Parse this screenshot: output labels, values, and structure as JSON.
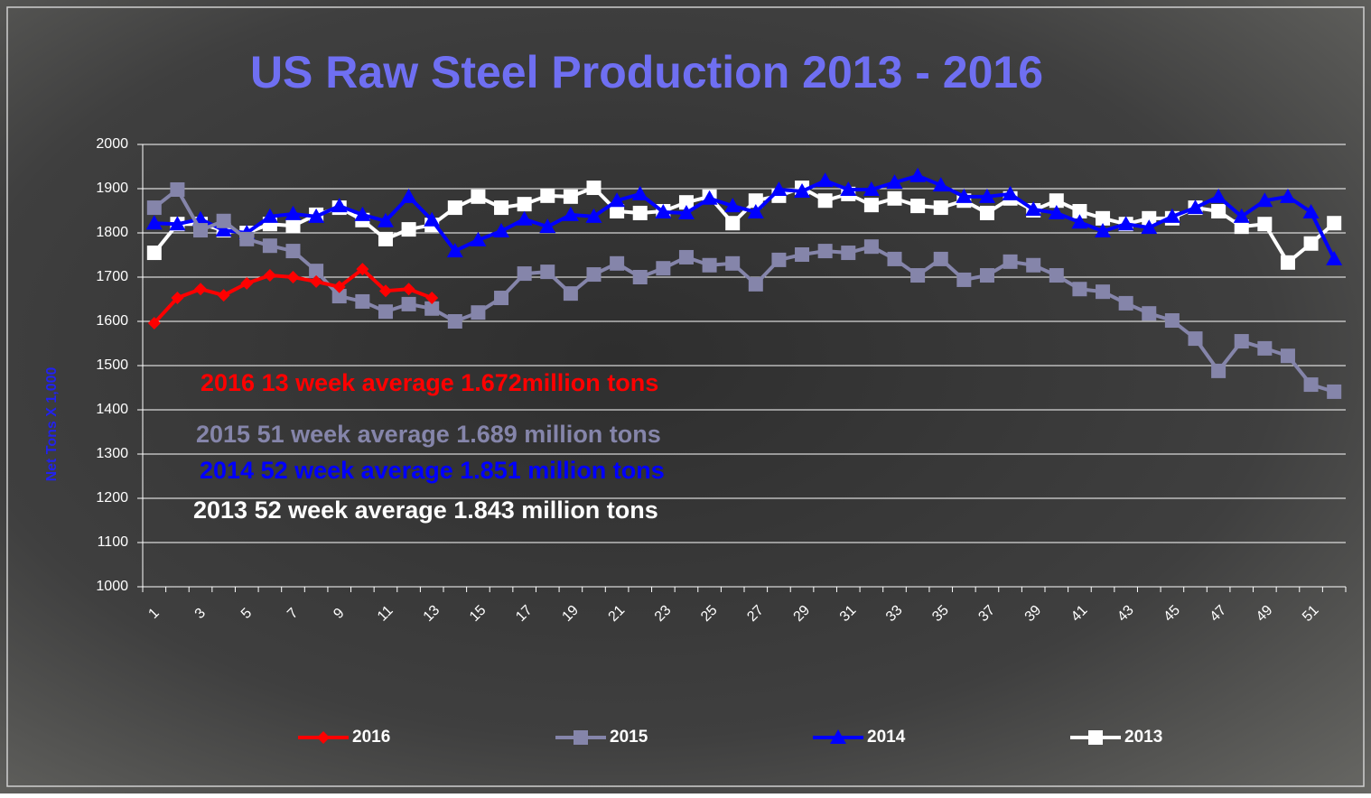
{
  "chart_data": {
    "type": "line",
    "title": "US Raw Steel Production 2013 - 2016",
    "y_label": "Net Tons X 1,000",
    "categories": [
      "1",
      null,
      "3",
      null,
      "5",
      null,
      "7",
      null,
      "9",
      null,
      "11",
      null,
      "13",
      null,
      "15",
      null,
      "17",
      null,
      "19",
      null,
      "21",
      null,
      "23",
      null,
      "25",
      null,
      "27",
      null,
      "29",
      null,
      "31",
      null,
      "33",
      null,
      "35",
      null,
      "37",
      null,
      "39",
      null,
      "41",
      null,
      "43",
      null,
      "45",
      null,
      "47",
      null,
      "49",
      null,
      "51",
      null
    ],
    "ylim": [
      1000,
      2000
    ],
    "yticks": [
      1000,
      1100,
      1200,
      1300,
      1400,
      1500,
      1600,
      1700,
      1800,
      1900,
      2000
    ],
    "grid": true,
    "legend": "bottom",
    "series": [
      {
        "name": "2016",
        "color": "#ff0000",
        "marker": "diamond",
        "values": [
          1596,
          1653,
          1673,
          1659,
          1686,
          1704,
          1700,
          1690,
          1678,
          1718,
          1669,
          1673,
          1653,
          null,
          null,
          null,
          null,
          null,
          null,
          null,
          null,
          null,
          null,
          null,
          null,
          null,
          null,
          null,
          null,
          null,
          null,
          null,
          null,
          null,
          null,
          null,
          null,
          null,
          null,
          null,
          null,
          null,
          null,
          null,
          null,
          null,
          null,
          null,
          null,
          null,
          null,
          null
        ]
      },
      {
        "name": "2015",
        "color": "#8585aa",
        "marker": "square",
        "values": [
          1857,
          1898,
          1806,
          1827,
          1786,
          1771,
          1759,
          1714,
          1657,
          1645,
          1622,
          1639,
          1629,
          1600,
          1620,
          1653,
          1708,
          1712,
          1663,
          1706,
          1731,
          1700,
          1720,
          1745,
          1727,
          1731,
          1684,
          1739,
          1751,
          1759,
          1755,
          1769,
          1741,
          1704,
          1741,
          1694,
          1704,
          1735,
          1727,
          1704,
          1673,
          1667,
          1641,
          1618,
          1602,
          1561,
          1488,
          1555,
          1539,
          1522,
          1457,
          1441
        ]
      },
      {
        "name": "2014",
        "color": "#0000ff",
        "marker": "triangle",
        "values": [
          1822,
          1820,
          1831,
          1806,
          1800,
          1837,
          1843,
          1837,
          1861,
          1841,
          1827,
          1882,
          1829,
          1759,
          1784,
          1804,
          1831,
          1814,
          1841,
          1837,
          1873,
          1888,
          1847,
          1845,
          1878,
          1861,
          1847,
          1898,
          1894,
          1918,
          1898,
          1898,
          1914,
          1929,
          1908,
          1882,
          1882,
          1888,
          1853,
          1845,
          1824,
          1804,
          1820,
          1812,
          1837,
          1857,
          1882,
          1837,
          1873,
          1882,
          1847,
          1741
        ]
      },
      {
        "name": "2013",
        "color": "#ffffff",
        "marker": "square",
        "values": [
          1755,
          1820,
          1820,
          1806,
          1800,
          1820,
          1816,
          1841,
          1857,
          1829,
          1786,
          1808,
          1818,
          1857,
          1882,
          1857,
          1865,
          1884,
          1882,
          1902,
          1849,
          1845,
          1849,
          1869,
          1882,
          1822,
          1873,
          1884,
          1902,
          1873,
          1888,
          1863,
          1878,
          1861,
          1857,
          1873,
          1845,
          1878,
          1851,
          1873,
          1849,
          1833,
          1820,
          1833,
          1833,
          1857,
          1849,
          1814,
          1820,
          1733,
          1776,
          1822
        ]
      }
    ],
    "annotations": [
      {
        "text": "2016 13 week average 1.672million tons",
        "color": "#ff0000"
      },
      {
        "text": "2015 51 week average 1.689 million tons",
        "color": "#8585aa"
      },
      {
        "text": "2014 52 week average 1.851 million tons",
        "color": "#0000ff"
      },
      {
        "text": "2013 52 week average 1.843 million tons",
        "color": "#ffffff"
      }
    ]
  }
}
